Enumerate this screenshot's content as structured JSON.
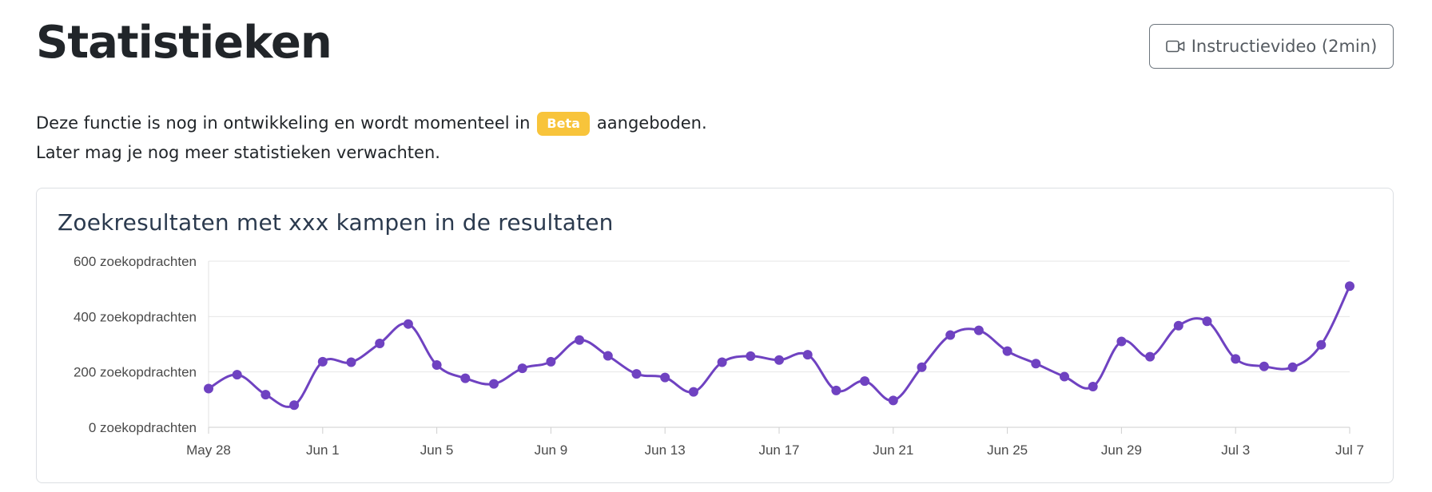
{
  "header": {
    "title": "Statistieken",
    "video_button_label": "Instructievideo (2min)"
  },
  "intro": {
    "line1_before": "Deze functie is nog in ontwikkeling en wordt momenteel in",
    "badge": "Beta",
    "line1_after": "aangeboden.",
    "line2": "Later mag je nog meer statistieken verwachten."
  },
  "icons": {
    "video_button": "video-camera-icon"
  },
  "colors": {
    "series": "#6f42c1",
    "badge": "#f8c43b"
  },
  "chart_data": {
    "type": "line",
    "title": "Zoekresultaten met xxx kampen in de resultaten",
    "x": [
      "May 28",
      "May 29",
      "May 30",
      "May 31",
      "Jun 1",
      "Jun 2",
      "Jun 3",
      "Jun 4",
      "Jun 5",
      "Jun 6",
      "Jun 7",
      "Jun 8",
      "Jun 9",
      "Jun 10",
      "Jun 11",
      "Jun 12",
      "Jun 13",
      "Jun 14",
      "Jun 15",
      "Jun 16",
      "Jun 17",
      "Jun 18",
      "Jun 19",
      "Jun 20",
      "Jun 21",
      "Jun 22",
      "Jun 23",
      "Jun 24",
      "Jun 25",
      "Jun 26",
      "Jun 27",
      "Jun 28",
      "Jun 29",
      "Jun 30",
      "Jul 1",
      "Jul 2",
      "Jul 3",
      "Jul 4",
      "Jul 5",
      "Jul 6",
      "Jul 7"
    ],
    "x_tick_labels": [
      "May 28",
      "Jun 1",
      "Jun 5",
      "Jun 9",
      "Jun 13",
      "Jun 17",
      "Jun 21",
      "Jun 25",
      "Jun 29",
      "Jul 3",
      "Jul 7"
    ],
    "series": [
      {
        "values": [
          140,
          190,
          118,
          80,
          237,
          235,
          303,
          373,
          225,
          177,
          157,
          213,
          237,
          315,
          258,
          193,
          180,
          128,
          235,
          257,
          243,
          262,
          133,
          167,
          97,
          217,
          333,
          350,
          275,
          230,
          183,
          147,
          310,
          255,
          367,
          383,
          247,
          220,
          217,
          298,
          510
        ]
      }
    ],
    "y_tick_labels": [
      "0 zoekopdrachten",
      "200 zoekopdrachten",
      "400 zoekopdrachten",
      "600 zoekopdrachten"
    ],
    "y_ticks": [
      0,
      200,
      400,
      600
    ],
    "ylim": [
      0,
      600
    ],
    "grid": true,
    "legend": "none"
  }
}
